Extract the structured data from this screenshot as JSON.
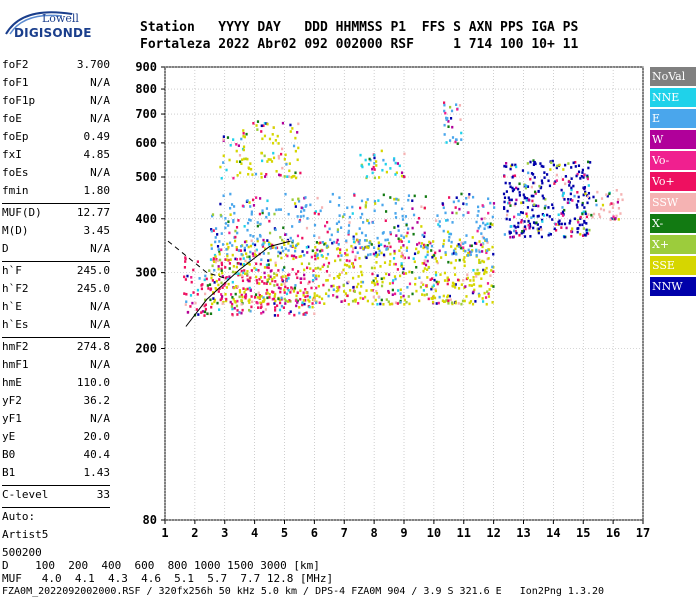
{
  "logo": {
    "line1": "Lowell",
    "line2": "DIGISONDE",
    "color": "#1a3e8c"
  },
  "header": {
    "row1": "Station   YYYY DAY   DDD HHMMSS P1  FFS S AXN PPS IGA PS",
    "row2": "Fortaleza 2022 Abr02 092 002000 RSF     1 714 100 10+ 11"
  },
  "params": {
    "group1": [
      {
        "name": "foF2",
        "value": "3.700"
      },
      {
        "name": "foF1",
        "value": "N/A"
      },
      {
        "name": "foF1p",
        "value": "N/A"
      },
      {
        "name": "foE",
        "value": "N/A"
      },
      {
        "name": "foEp",
        "value": "0.49"
      },
      {
        "name": "fxI",
        "value": "4.85"
      },
      {
        "name": "foEs",
        "value": "N/A"
      },
      {
        "name": "fmin",
        "value": "1.80"
      }
    ],
    "group2": [
      {
        "name": "MUF(D)",
        "value": "12.77"
      },
      {
        "name": "M(D)",
        "value": "3.45"
      },
      {
        "name": "D",
        "value": "N/A"
      }
    ],
    "group3": [
      {
        "name": "h`F",
        "value": "245.0"
      },
      {
        "name": "h`F2",
        "value": "245.0"
      },
      {
        "name": "h`E",
        "value": "N/A"
      },
      {
        "name": "h`Es",
        "value": "N/A"
      }
    ],
    "group4": [
      {
        "name": "hmF2",
        "value": "274.8"
      },
      {
        "name": "hmF1",
        "value": "N/A"
      },
      {
        "name": "hmE",
        "value": "110.0"
      },
      {
        "name": "yF2",
        "value": "36.2"
      },
      {
        "name": "yF1",
        "value": "N/A"
      },
      {
        "name": "yE",
        "value": "20.0"
      },
      {
        "name": "B0",
        "value": "40.4"
      },
      {
        "name": "B1",
        "value": "1.43"
      }
    ],
    "clevel": {
      "name": "C-level",
      "value": "33"
    },
    "auto": [
      "Auto:",
      "Artist5",
      "500200"
    ]
  },
  "legend": [
    {
      "label": "NoVal",
      "color": "#808080"
    },
    {
      "label": "NNE",
      "color": "#1fd2ea"
    },
    {
      "label": "E",
      "color": "#4aa6ec"
    },
    {
      "label": "W",
      "color": "#b0009a"
    },
    {
      "label": "Vo-",
      "color": "#f0208f"
    },
    {
      "label": "Vo+",
      "color": "#ee1060"
    },
    {
      "label": "SSW",
      "color": "#f5b3b3"
    },
    {
      "label": "X-",
      "color": "#127a12"
    },
    {
      "label": "X+",
      "color": "#9ccc3c"
    },
    {
      "label": "SSE",
      "color": "#d6d600"
    },
    {
      "label": "NNW",
      "color": "#0000aa"
    }
  ],
  "chart_data": {
    "type": "scatter",
    "xlabel": "",
    "ylabel": "",
    "xlim": [
      1,
      17
    ],
    "ylim": [
      80,
      900
    ],
    "xticks": [
      1,
      2,
      3,
      4,
      5,
      6,
      7,
      8,
      9,
      10,
      11,
      12,
      13,
      14,
      15,
      16,
      17
    ],
    "yticks": [
      80,
      200,
      300,
      400,
      500,
      600,
      700,
      800,
      900
    ],
    "grid": true,
    "yscale": "log",
    "clusters": [
      {
        "name": "F2 trace O-mode",
        "x_range": [
          1.6,
          6.0
        ],
        "y_range": [
          240,
          330
        ],
        "dominant": "Vo+"
      },
      {
        "name": "F2 dense",
        "x_range": [
          2.5,
          12.0
        ],
        "y_range": [
          255,
          360
        ],
        "dominant": "SSE"
      },
      {
        "name": "Spread F",
        "x_range": [
          2.5,
          12.0
        ],
        "y_range": [
          330,
          460
        ],
        "dominant": "E"
      },
      {
        "name": "High echoes",
        "x_range": [
          2.8,
          5.5
        ],
        "y_range": [
          500,
          680
        ],
        "dominant": "SSE"
      },
      {
        "name": "Band 8 MHz",
        "x_range": [
          7.5,
          9.0
        ],
        "y_range": [
          500,
          580
        ],
        "dominant": "NNE"
      },
      {
        "name": "Band 10.5 MHz",
        "x_range": [
          10.3,
          10.9
        ],
        "y_range": [
          600,
          760
        ],
        "dominant": "E"
      },
      {
        "name": "Right cluster",
        "x_range": [
          12.3,
          15.2
        ],
        "y_range": [
          365,
          550
        ],
        "dominant": "NNW"
      },
      {
        "name": "Right sparse",
        "x_range": [
          15.0,
          16.3
        ],
        "y_range": [
          400,
          470
        ],
        "dominant": "SSW"
      }
    ],
    "traces": [
      {
        "name": "O-trace",
        "style": "solid",
        "points": [
          [
            1.7,
            225
          ],
          [
            2.4,
            260
          ],
          [
            3.5,
            305
          ],
          [
            4.5,
            345
          ],
          [
            5.2,
            355
          ]
        ]
      },
      {
        "name": "X-trace",
        "style": "dashed",
        "points": [
          [
            1.1,
            355
          ],
          [
            2.4,
            300
          ],
          [
            3.1,
            290
          ]
        ]
      }
    ]
  },
  "bottom": {
    "row1": "D    100  200  400  600  800 1000 1500 3000 [km]",
    "row2": "MUF   4.0  4.1  4.3  4.6  5.1  5.7  7.7 12.8 [MHz]"
  },
  "footer": "FZA0M_2022092002000.RSF / 320fx256h 50 kHz 5.0 km / DPS-4 FZA0M 904 / 3.9 S 321.6 E   Ion2Png 1.3.20"
}
